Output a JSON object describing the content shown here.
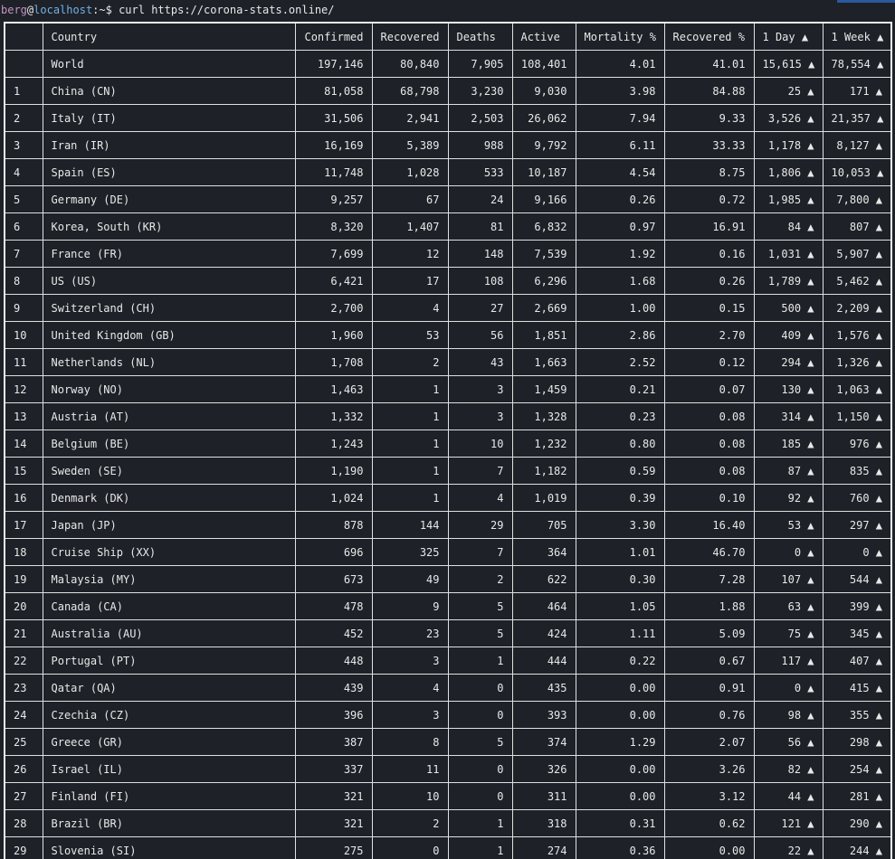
{
  "terminal": {
    "user": "berg",
    "at": "@",
    "host": "localhost",
    "path_sep": ":~$ ",
    "command": "curl https://corona-stats.online/"
  },
  "columns": [
    "",
    "Country",
    "Confirmed",
    "Recovered",
    "Deaths",
    "Active",
    "Mortality %",
    "Recovered %",
    "1 Day ▲",
    "1 Week ▲"
  ],
  "rows": [
    [
      "",
      "World",
      "197,146",
      "80,840",
      "7,905",
      "108,401",
      "4.01",
      "41.01",
      "15,615 ▲",
      "78,554 ▲"
    ],
    [
      "1",
      "China (CN)",
      "81,058",
      "68,798",
      "3,230",
      "9,030",
      "3.98",
      "84.88",
      "25 ▲",
      "171 ▲"
    ],
    [
      "2",
      "Italy (IT)",
      "31,506",
      "2,941",
      "2,503",
      "26,062",
      "7.94",
      "9.33",
      "3,526 ▲",
      "21,357 ▲"
    ],
    [
      "3",
      "Iran (IR)",
      "16,169",
      "5,389",
      "988",
      "9,792",
      "6.11",
      "33.33",
      "1,178 ▲",
      "8,127 ▲"
    ],
    [
      "4",
      "Spain (ES)",
      "11,748",
      "1,028",
      "533",
      "10,187",
      "4.54",
      "8.75",
      "1,806 ▲",
      "10,053 ▲"
    ],
    [
      "5",
      "Germany (DE)",
      "9,257",
      "67",
      "24",
      "9,166",
      "0.26",
      "0.72",
      "1,985 ▲",
      "7,800 ▲"
    ],
    [
      "6",
      "Korea, South (KR)",
      "8,320",
      "1,407",
      "81",
      "6,832",
      "0.97",
      "16.91",
      "84 ▲",
      "807 ▲"
    ],
    [
      "7",
      "France (FR)",
      "7,699",
      "12",
      "148",
      "7,539",
      "1.92",
      "0.16",
      "1,031 ▲",
      "5,907 ▲"
    ],
    [
      "8",
      "US (US)",
      "6,421",
      "17",
      "108",
      "6,296",
      "1.68",
      "0.26",
      "1,789 ▲",
      "5,462 ▲"
    ],
    [
      "9",
      "Switzerland (CH)",
      "2,700",
      "4",
      "27",
      "2,669",
      "1.00",
      "0.15",
      "500 ▲",
      "2,209 ▲"
    ],
    [
      "10",
      "United Kingdom (GB)",
      "1,960",
      "53",
      "56",
      "1,851",
      "2.86",
      "2.70",
      "409 ▲",
      "1,576 ▲"
    ],
    [
      "11",
      "Netherlands (NL)",
      "1,708",
      "2",
      "43",
      "1,663",
      "2.52",
      "0.12",
      "294 ▲",
      "1,326 ▲"
    ],
    [
      "12",
      "Norway (NO)",
      "1,463",
      "1",
      "3",
      "1,459",
      "0.21",
      "0.07",
      "130 ▲",
      "1,063 ▲"
    ],
    [
      "13",
      "Austria (AT)",
      "1,332",
      "1",
      "3",
      "1,328",
      "0.23",
      "0.08",
      "314 ▲",
      "1,150 ▲"
    ],
    [
      "14",
      "Belgium (BE)",
      "1,243",
      "1",
      "10",
      "1,232",
      "0.80",
      "0.08",
      "185 ▲",
      "976 ▲"
    ],
    [
      "15",
      "Sweden (SE)",
      "1,190",
      "1",
      "7",
      "1,182",
      "0.59",
      "0.08",
      "87 ▲",
      "835 ▲"
    ],
    [
      "16",
      "Denmark (DK)",
      "1,024",
      "1",
      "4",
      "1,019",
      "0.39",
      "0.10",
      "92 ▲",
      "760 ▲"
    ],
    [
      "17",
      "Japan (JP)",
      "878",
      "144",
      "29",
      "705",
      "3.30",
      "16.40",
      "53 ▲",
      "297 ▲"
    ],
    [
      "18",
      "Cruise Ship (XX)",
      "696",
      "325",
      "7",
      "364",
      "1.01",
      "46.70",
      "0 ▲",
      "0 ▲"
    ],
    [
      "19",
      "Malaysia (MY)",
      "673",
      "49",
      "2",
      "622",
      "0.30",
      "7.28",
      "107 ▲",
      "544 ▲"
    ],
    [
      "20",
      "Canada (CA)",
      "478",
      "9",
      "5",
      "464",
      "1.05",
      "1.88",
      "63 ▲",
      "399 ▲"
    ],
    [
      "21",
      "Australia (AU)",
      "452",
      "23",
      "5",
      "424",
      "1.11",
      "5.09",
      "75 ▲",
      "345 ▲"
    ],
    [
      "22",
      "Portugal (PT)",
      "448",
      "3",
      "1",
      "444",
      "0.22",
      "0.67",
      "117 ▲",
      "407 ▲"
    ],
    [
      "23",
      "Qatar (QA)",
      "439",
      "4",
      "0",
      "435",
      "0.00",
      "0.91",
      "0 ▲",
      "415 ▲"
    ],
    [
      "24",
      "Czechia (CZ)",
      "396",
      "3",
      "0",
      "393",
      "0.00",
      "0.76",
      "98 ▲",
      "355 ▲"
    ],
    [
      "25",
      "Greece (GR)",
      "387",
      "8",
      "5",
      "374",
      "1.29",
      "2.07",
      "56 ▲",
      "298 ▲"
    ],
    [
      "26",
      "Israel (IL)",
      "337",
      "11",
      "0",
      "326",
      "0.00",
      "3.26",
      "82 ▲",
      "254 ▲"
    ],
    [
      "27",
      "Finland (FI)",
      "321",
      "10",
      "0",
      "311",
      "0.00",
      "3.12",
      "44 ▲",
      "281 ▲"
    ],
    [
      "28",
      "Brazil (BR)",
      "321",
      "2",
      "1",
      "318",
      "0.31",
      "0.62",
      "121 ▲",
      "290 ▲"
    ],
    [
      "29",
      "Slovenia (SI)",
      "275",
      "0",
      "1",
      "274",
      "0.36",
      "0.00",
      "22 ▲",
      "244 ▲"
    ]
  ],
  "colors": {
    "background": "#1e2127",
    "text": "#e8e8e8",
    "prompt_user": "#c792c4",
    "prompt_host": "#6fb0e8",
    "border": "#e0e0e0",
    "scroll_indicator": "#2a5a9e"
  }
}
